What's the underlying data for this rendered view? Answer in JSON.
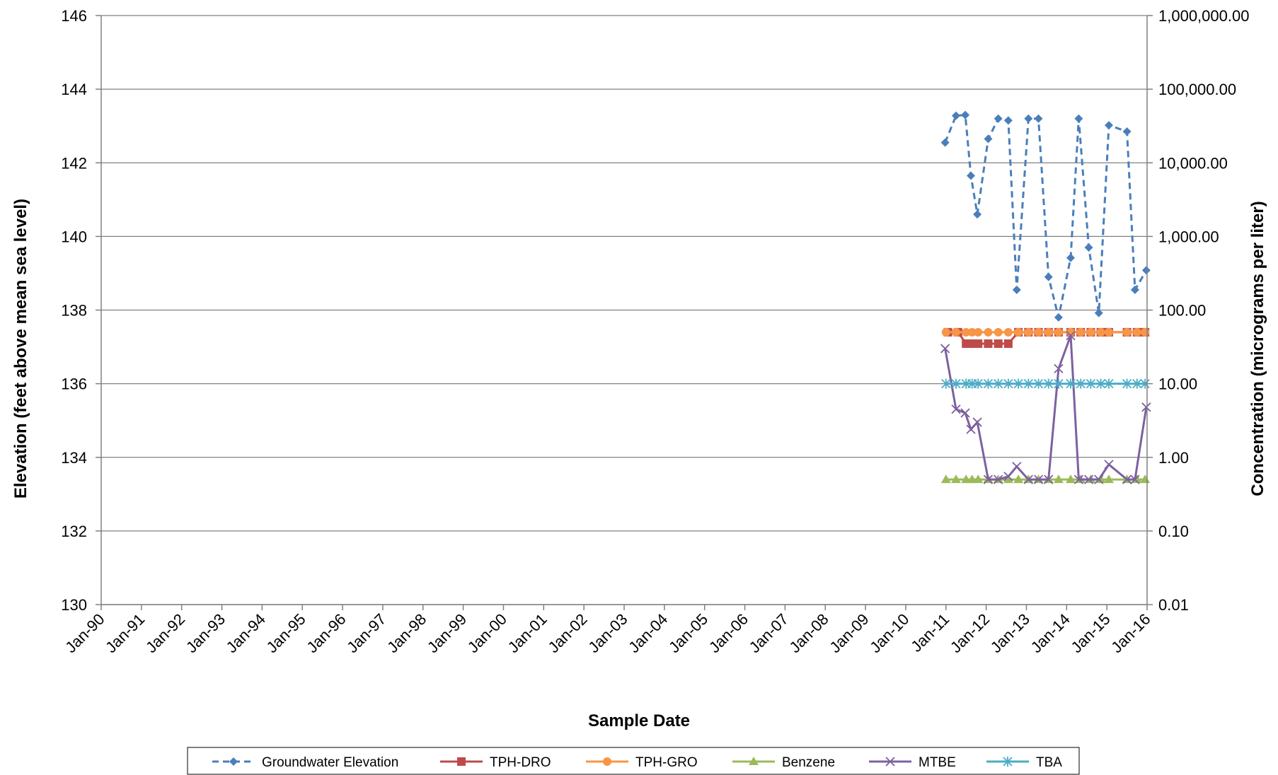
{
  "chart_data": {
    "type": "line",
    "xlabel": "Sample Date",
    "ylabel": "Elevation (feet above mean sea level)",
    "y2label": "Concentration (micrograms per liter)",
    "x_tick_labels": [
      "Jan-90",
      "Jan-91",
      "Jan-92",
      "Jan-93",
      "Jan-94",
      "Jan-95",
      "Jan-96",
      "Jan-97",
      "Jan-98",
      "Jan-99",
      "Jan-00",
      "Jan-01",
      "Jan-02",
      "Jan-03",
      "Jan-04",
      "Jan-05",
      "Jan-06",
      "Jan-07",
      "Jan-08",
      "Jan-09",
      "Jan-10",
      "Jan-11",
      "Jan-12",
      "Jan-13",
      "Jan-14",
      "Jan-15",
      "Jan-16"
    ],
    "xlim": [
      1990.0,
      2016.0
    ],
    "ylim": [
      130,
      146
    ],
    "y_ticks": [
      130,
      132,
      134,
      136,
      138,
      140,
      142,
      144,
      146
    ],
    "y_tick_labels": [
      "130",
      "132",
      "134",
      "136",
      "138",
      "140",
      "142",
      "144",
      "146"
    ],
    "y2_scale": "log",
    "y2lim": [
      0.01,
      1000000
    ],
    "y2_ticks": [
      0.01,
      0.1,
      1,
      10,
      100,
      1000,
      10000,
      100000,
      1000000
    ],
    "y2_tick_labels": [
      "0.01",
      "0.10",
      "1.00",
      "10.00",
      "100.00",
      "1,000.00",
      "10,000.00",
      "100,000.00",
      "1,000,000.00"
    ],
    "grid": "horizontal",
    "legend_position": "bottom",
    "series": [
      {
        "name": "Groundwater Elevation",
        "axis": "left",
        "color": "#4a7ebb",
        "line": "dashed",
        "marker": "diamond",
        "x": [
          2010.98,
          2011.25,
          2011.48,
          2011.62,
          2011.78,
          2012.05,
          2012.3,
          2012.55,
          2012.76,
          2013.05,
          2013.3,
          2013.55,
          2013.8,
          2014.1,
          2014.3,
          2014.55,
          2014.8,
          2015.05,
          2015.5,
          2015.7,
          2015.98
        ],
        "y": [
          142.55,
          143.28,
          143.3,
          141.65,
          140.6,
          142.65,
          143.2,
          143.15,
          138.55,
          143.2,
          143.2,
          138.9,
          137.8,
          139.42,
          143.2,
          139.7,
          137.92,
          143.02,
          142.85,
          138.55,
          139.08
        ]
      },
      {
        "name": "TPH-DRO",
        "axis": "right",
        "color": "#be4b48",
        "line": "solid",
        "marker": "square",
        "x": [
          2011.05,
          2011.3,
          2011.5,
          2011.65,
          2011.8,
          2012.05,
          2012.3,
          2012.55,
          2012.8,
          2013.05,
          2013.3,
          2013.55,
          2013.8,
          2014.1,
          2014.35,
          2014.6,
          2014.85,
          2015.05,
          2015.5,
          2015.75,
          2015.95
        ],
        "y": [
          50,
          50,
          35,
          35,
          35,
          35,
          35,
          35,
          50,
          50,
          50,
          50,
          50,
          50,
          50,
          50,
          50,
          50,
          50,
          50,
          50
        ]
      },
      {
        "name": "TPH-GRO",
        "axis": "right",
        "color": "#f79646",
        "line": "solid",
        "marker": "circle",
        "x": [
          2011.0,
          2011.25,
          2011.5,
          2011.65,
          2011.8,
          2012.05,
          2012.3,
          2012.55,
          2012.8,
          2013.05,
          2013.3,
          2013.55,
          2013.8,
          2014.1,
          2014.35,
          2014.6,
          2014.85,
          2015.05,
          2015.5,
          2015.75,
          2015.95
        ],
        "y": [
          50,
          50,
          50,
          50,
          50,
          50,
          50,
          50,
          50,
          50,
          50,
          50,
          50,
          50,
          50,
          50,
          50,
          50,
          50,
          50,
          50
        ]
      },
      {
        "name": "Benzene",
        "axis": "right",
        "color": "#9bbb59",
        "line": "solid",
        "marker": "triangle",
        "x": [
          2011.0,
          2011.25,
          2011.5,
          2011.65,
          2011.8,
          2012.05,
          2012.3,
          2012.55,
          2012.8,
          2013.05,
          2013.3,
          2013.55,
          2013.8,
          2014.1,
          2014.35,
          2014.6,
          2014.85,
          2015.05,
          2015.5,
          2015.75,
          2015.95
        ],
        "y": [
          0.5,
          0.5,
          0.5,
          0.5,
          0.5,
          0.5,
          0.5,
          0.5,
          0.5,
          0.5,
          0.5,
          0.5,
          0.5,
          0.5,
          0.5,
          0.5,
          0.5,
          0.5,
          0.5,
          0.5,
          0.5
        ]
      },
      {
        "name": "MTBE",
        "axis": "right",
        "color": "#7d60a0",
        "line": "solid",
        "marker": "x",
        "x": [
          2010.98,
          2011.25,
          2011.48,
          2011.62,
          2011.78,
          2012.05,
          2012.3,
          2012.55,
          2012.76,
          2013.05,
          2013.3,
          2013.55,
          2013.8,
          2014.1,
          2014.3,
          2014.55,
          2014.8,
          2015.05,
          2015.5,
          2015.7,
          2015.98
        ],
        "y": [
          30,
          4.5,
          4,
          2.4,
          3,
          0.5,
          0.5,
          0.55,
          0.75,
          0.5,
          0.5,
          0.5,
          16,
          45,
          0.5,
          0.5,
          0.5,
          0.8,
          0.5,
          0.5,
          4.8
        ]
      },
      {
        "name": "TBA",
        "axis": "right",
        "color": "#4bacc6",
        "line": "solid",
        "marker": "star",
        "x": [
          2011.0,
          2011.25,
          2011.5,
          2011.65,
          2011.8,
          2012.05,
          2012.3,
          2012.55,
          2012.8,
          2013.05,
          2013.3,
          2013.55,
          2013.8,
          2014.1,
          2014.35,
          2014.6,
          2014.85,
          2015.05,
          2015.5,
          2015.75,
          2015.95
        ],
        "y": [
          10,
          10,
          10,
          10,
          10,
          10,
          10,
          10,
          10,
          10,
          10,
          10,
          10,
          10,
          10,
          10,
          10,
          10,
          10,
          10,
          10
        ]
      }
    ]
  }
}
